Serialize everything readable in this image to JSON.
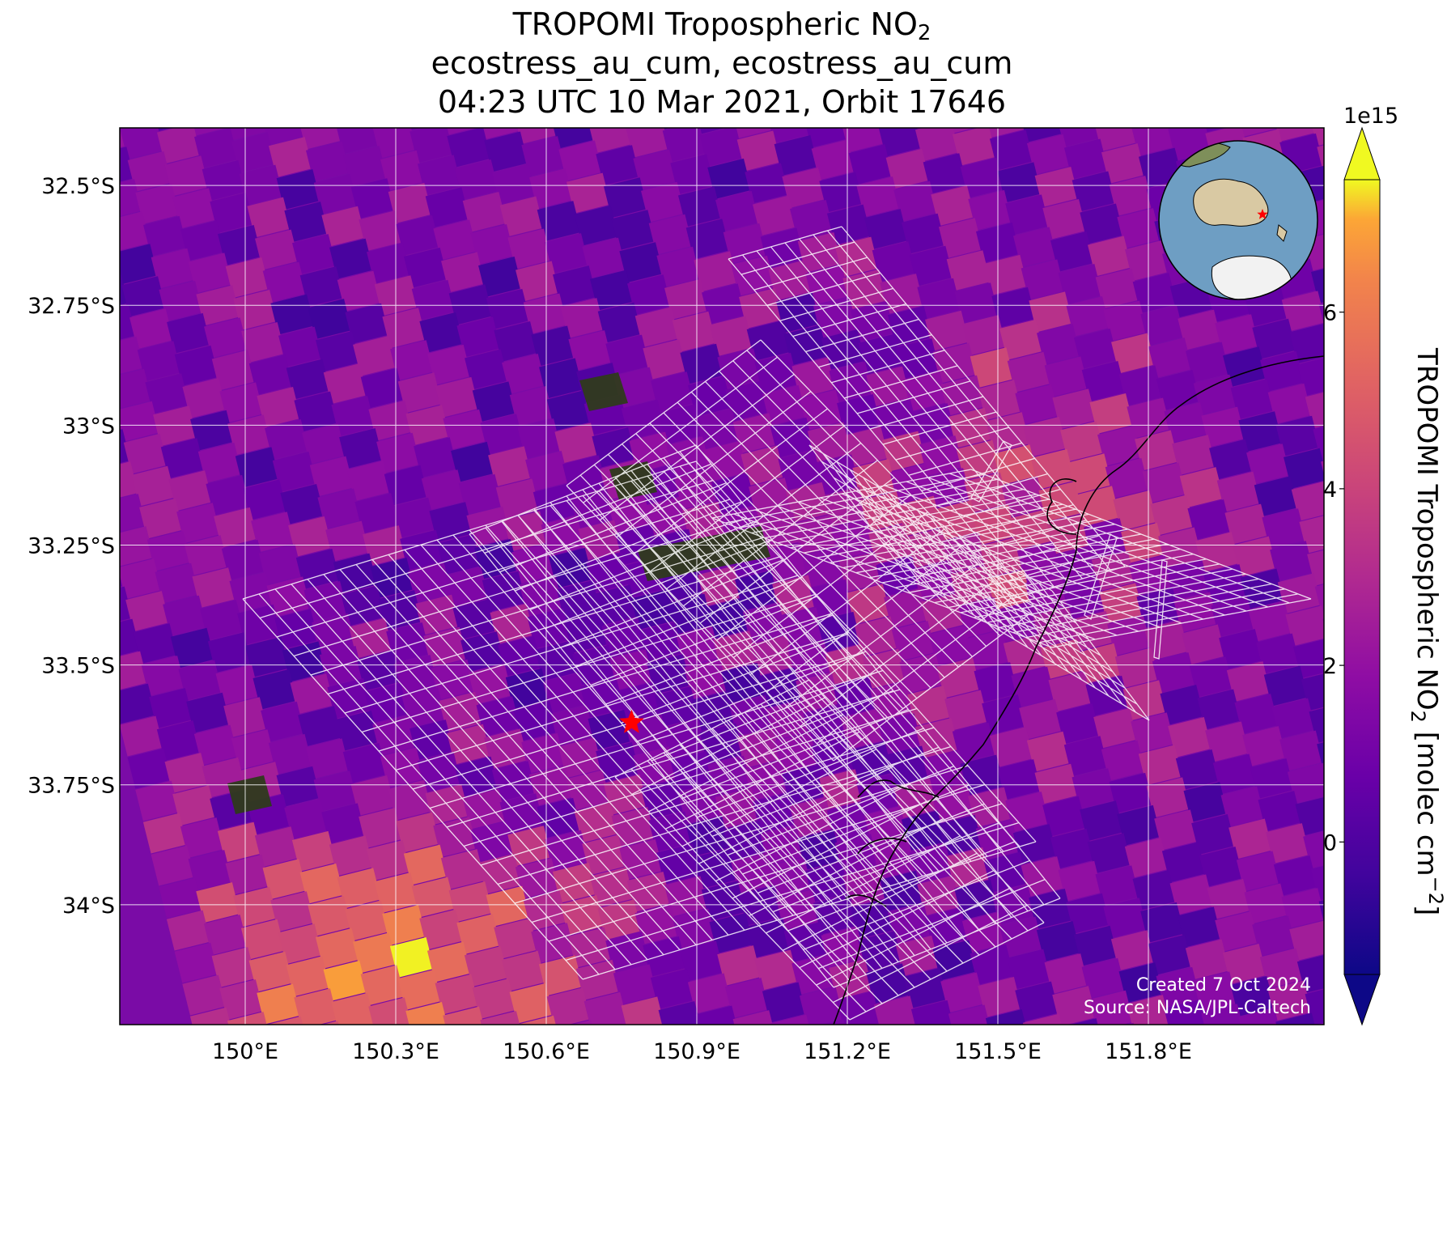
{
  "title": {
    "line1_main": "TROPOMI Tropospheric NO",
    "line1_sub": "2",
    "line2": "ecostress_au_cum, ecostress_au_cum",
    "line3": "04:23 UTC 10 Mar 2021, Orbit 17646"
  },
  "map": {
    "lon_range": [
      149.75,
      152.15
    ],
    "lat_range": [
      -34.25,
      -32.38
    ],
    "lon_ticks": [
      {
        "value": 150.0,
        "label": "150°E"
      },
      {
        "value": 150.3,
        "label": "150.3°E"
      },
      {
        "value": 150.6,
        "label": "150.6°E"
      },
      {
        "value": 150.9,
        "label": "150.9°E"
      },
      {
        "value": 151.2,
        "label": "151.2°E"
      },
      {
        "value": 151.5,
        "label": "151.5°E"
      },
      {
        "value": 151.8,
        "label": "151.8°E"
      }
    ],
    "lat_ticks": [
      {
        "value": -32.5,
        "label": "32.5°S"
      },
      {
        "value": -32.75,
        "label": "32.75°S"
      },
      {
        "value": -33.0,
        "label": "33°S"
      },
      {
        "value": -33.25,
        "label": "33.25°S"
      },
      {
        "value": -33.5,
        "label": "33.5°S"
      },
      {
        "value": -33.75,
        "label": "33.75°S"
      },
      {
        "value": -34.0,
        "label": "34°S"
      }
    ],
    "target_marker": {
      "lon": 150.77,
      "lat": -33.62,
      "color": "#ff0000",
      "icon": "star-icon"
    },
    "credit_line1": "Created 7 Oct 2024",
    "credit_line2": "Source: NASA/JPL-Caltech"
  },
  "colorbar": {
    "colormap": "plasma",
    "min": -1.5,
    "max": 7.5,
    "offset_label": "1e15",
    "ticks": [
      {
        "value": 0,
        "label": "0"
      },
      {
        "value": 2,
        "label": "2"
      },
      {
        "value": 4,
        "label": "4"
      },
      {
        "value": 6,
        "label": "6"
      }
    ],
    "label_main": "TROPOMI Tropospheric NO",
    "label_sub": "2",
    "label_unit_pre": " [molec cm",
    "label_unit_sup": "−2",
    "label_unit_post": "]"
  },
  "inset_globe": {
    "ocean_color": "#6e9ec3",
    "land_color": "#d9c9a3",
    "ice_color": "#f2f2f2",
    "marker_color": "#ff0000",
    "icon": "globe-icon"
  },
  "colors": {
    "grid_line": "#ffffff",
    "footprint_outline": "#ffffff",
    "coastline": "#000000"
  }
}
